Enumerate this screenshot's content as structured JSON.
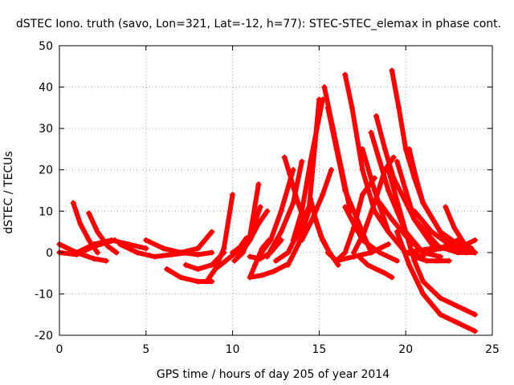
{
  "chart_data": {
    "type": "scatter",
    "title": "dSTEC Iono. truth (savo, Lon=321, Lat=-12, h=77): STEC-STEC_elemax in phase cont.",
    "xlabel": "GPS time / hours of day 205 of year 2014",
    "ylabel": "dSTEC  / TECUs",
    "xlim": [
      0,
      25
    ],
    "ylim": [
      -20,
      50
    ],
    "xticks": [
      "0",
      "5",
      "10",
      "15",
      "20",
      "25"
    ],
    "yticks": [
      "-20",
      "-10",
      "0",
      "10",
      "20",
      "30",
      "40",
      "50"
    ],
    "grid": true,
    "legend": "none",
    "marker": "plus",
    "color": "#ff0000",
    "series": [
      {
        "x": [
          0,
          1,
          2,
          2.7
        ],
        "y": [
          2,
          0,
          -1.5,
          -2
        ]
      },
      {
        "x": [
          0,
          1,
          2,
          3.2
        ],
        "y": [
          0,
          -0.5,
          1.5,
          3
        ]
      },
      {
        "x": [
          0.8,
          1.2,
          1.7,
          2.2
        ],
        "y": [
          12,
          7,
          3,
          0
        ]
      },
      {
        "x": [
          1.7,
          2.2,
          2.8,
          3.3
        ],
        "y": [
          9.5,
          5,
          1.5,
          0
        ]
      },
      {
        "x": [
          1,
          2,
          3,
          4,
          5
        ],
        "y": [
          0,
          2,
          3,
          2,
          1
        ]
      },
      {
        "x": [
          3.5,
          4.5,
          5.5,
          6.5,
          7.5
        ],
        "y": [
          2,
          0,
          -1,
          -0.5,
          0
        ]
      },
      {
        "x": [
          5,
          6,
          7,
          8,
          8.8
        ],
        "y": [
          3,
          1,
          0,
          1,
          5
        ]
      },
      {
        "x": [
          6,
          7,
          8,
          8.8
        ],
        "y": [
          1,
          0,
          -0.5,
          0
        ]
      },
      {
        "x": [
          6.2,
          7,
          8,
          8.8
        ],
        "y": [
          -4,
          -6,
          -7,
          -7
        ]
      },
      {
        "x": [
          7.3,
          8,
          8.8,
          9.5
        ],
        "y": [
          -3,
          -4,
          -3,
          0
        ]
      },
      {
        "x": [
          8.5,
          9,
          9.5,
          10
        ],
        "y": [
          -7,
          -4,
          1,
          14
        ]
      },
      {
        "x": [
          9,
          9.6,
          10.2,
          10.8
        ],
        "y": [
          -4,
          -2,
          0,
          3.5
        ]
      },
      {
        "x": [
          10,
          10.5,
          11,
          11.5
        ],
        "y": [
          0,
          1.5,
          4,
          16.5
        ]
      },
      {
        "x": [
          10.1,
          10.6,
          11.1,
          11.6
        ],
        "y": [
          -2,
          0,
          5,
          11
        ]
      },
      {
        "x": [
          10.5,
          11,
          11.5,
          12
        ],
        "y": [
          0,
          3,
          7,
          10
        ]
      },
      {
        "x": [
          11,
          11.3,
          11.7,
          12.1
        ],
        "y": [
          -6,
          -3,
          1,
          3
        ]
      },
      {
        "x": [
          11,
          11.6,
          12.2,
          12.8
        ],
        "y": [
          -1,
          -1.5,
          0,
          3
        ]
      },
      {
        "x": [
          11,
          11.7,
          12.4,
          13.1
        ],
        "y": [
          -6,
          -5.5,
          -4.5,
          -3
        ]
      },
      {
        "x": [
          11.5,
          12.2,
          12.8,
          13.5
        ],
        "y": [
          -1,
          3,
          10,
          20
        ]
      },
      {
        "x": [
          12,
          12.8,
          13.5,
          14
        ],
        "y": [
          -1,
          5,
          12,
          22
        ]
      },
      {
        "x": [
          12.5,
          13.2,
          13.8,
          14.5
        ],
        "y": [
          -2,
          0,
          5,
          12
        ]
      },
      {
        "x": [
          13,
          13.3,
          13.7,
          14.2
        ],
        "y": [
          23,
          19,
          13,
          7
        ]
      },
      {
        "x": [
          13.2,
          13.8,
          14.4,
          15
        ],
        "y": [
          -3,
          2,
          10,
          37
        ]
      },
      {
        "x": [
          13.5,
          14,
          14.5,
          15.2
        ],
        "y": [
          3,
          10,
          22,
          37
        ]
      },
      {
        "x": [
          14,
          14.6,
          15.2,
          15.7
        ],
        "y": [
          3,
          8,
          14,
          20
        ]
      },
      {
        "x": [
          14.5,
          14.8,
          15.2,
          15.6
        ],
        "y": [
          13,
          8,
          3,
          0
        ]
      },
      {
        "x": [
          14.7,
          15.1,
          15.6,
          16.1
        ],
        "y": [
          9,
          4,
          0,
          -3
        ]
      },
      {
        "x": [
          15.3,
          15.8,
          16.3,
          16.8
        ],
        "y": [
          40,
          30,
          20,
          10
        ]
      },
      {
        "x": [
          15.5,
          16,
          16.5,
          17.5,
          18
        ],
        "y": [
          35,
          25,
          15,
          5,
          0
        ]
      },
      {
        "x": [
          15.5,
          16,
          17,
          18,
          19
        ],
        "y": [
          0,
          -2,
          -1,
          0,
          2
        ]
      },
      {
        "x": [
          16,
          16.5,
          17,
          17.5,
          18.2
        ],
        "y": [
          -2,
          0,
          6,
          14,
          18
        ]
      },
      {
        "x": [
          16.5,
          16.9,
          17.5,
          18.2,
          19
        ],
        "y": [
          43,
          35,
          20,
          10,
          5
        ]
      },
      {
        "x": [
          16.5,
          17,
          17.5,
          18.5,
          19.5
        ],
        "y": [
          11,
          7,
          3,
          0,
          -2
        ]
      },
      {
        "x": [
          17,
          17.6,
          18.2,
          18.8,
          19.3
        ],
        "y": [
          0,
          5,
          12,
          20,
          23
        ]
      },
      {
        "x": [
          17.5,
          18.2,
          19,
          20,
          21
        ],
        "y": [
          25,
          15,
          5,
          0,
          -1
        ]
      },
      {
        "x": [
          17.3,
          17.8,
          18.3,
          18.8,
          19.2
        ],
        "y": [
          -1,
          -3,
          -4,
          -5,
          -6
        ]
      },
      {
        "x": [
          18,
          18.5,
          19,
          20,
          21
        ],
        "y": [
          29,
          22,
          15,
          5,
          0
        ]
      },
      {
        "x": [
          18.3,
          18.8,
          19.3,
          20.5,
          22
        ],
        "y": [
          33,
          25,
          18,
          8,
          1
        ]
      },
      {
        "x": [
          18.5,
          19.2,
          20,
          21,
          22
        ],
        "y": [
          12,
          8,
          4,
          0,
          -1
        ]
      },
      {
        "x": [
          19.2,
          19.6,
          20,
          20.5,
          21,
          22,
          23
        ],
        "y": [
          44,
          35,
          25,
          18,
          12,
          5,
          1
        ]
      },
      {
        "x": [
          19.5,
          20,
          20.5,
          21.5,
          23,
          24
        ],
        "y": [
          22,
          15,
          8,
          2,
          0,
          0
        ]
      },
      {
        "x": [
          19,
          20,
          20.5,
          21,
          22,
          23,
          24
        ],
        "y": [
          20,
          5,
          -2,
          -7,
          -11,
          -13,
          -15
        ]
      },
      {
        "x": [
          19.5,
          20.2,
          21,
          22,
          23,
          24
        ],
        "y": [
          5,
          -3,
          -10,
          -15,
          -17,
          -19
        ]
      },
      {
        "x": [
          20.2,
          20.6,
          21,
          22,
          23,
          24
        ],
        "y": [
          25,
          18,
          12,
          5,
          2,
          0
        ]
      },
      {
        "x": [
          20.5,
          21.5,
          22.5,
          23.5
        ],
        "y": [
          10,
          5,
          2,
          0
        ]
      },
      {
        "x": [
          20.5,
          21.2,
          21.8,
          22.5
        ],
        "y": [
          -1,
          -2,
          -2,
          -2
        ]
      },
      {
        "x": [
          22.3,
          22.8,
          23.4,
          24
        ],
        "y": [
          11,
          6,
          2,
          0
        ]
      },
      {
        "x": [
          20,
          21.5,
          23,
          24
        ],
        "y": [
          0,
          1,
          1,
          3
        ]
      },
      {
        "x": [
          21,
          22,
          23,
          23.8
        ],
        "y": [
          0,
          1,
          3,
          1
        ]
      }
    ]
  }
}
